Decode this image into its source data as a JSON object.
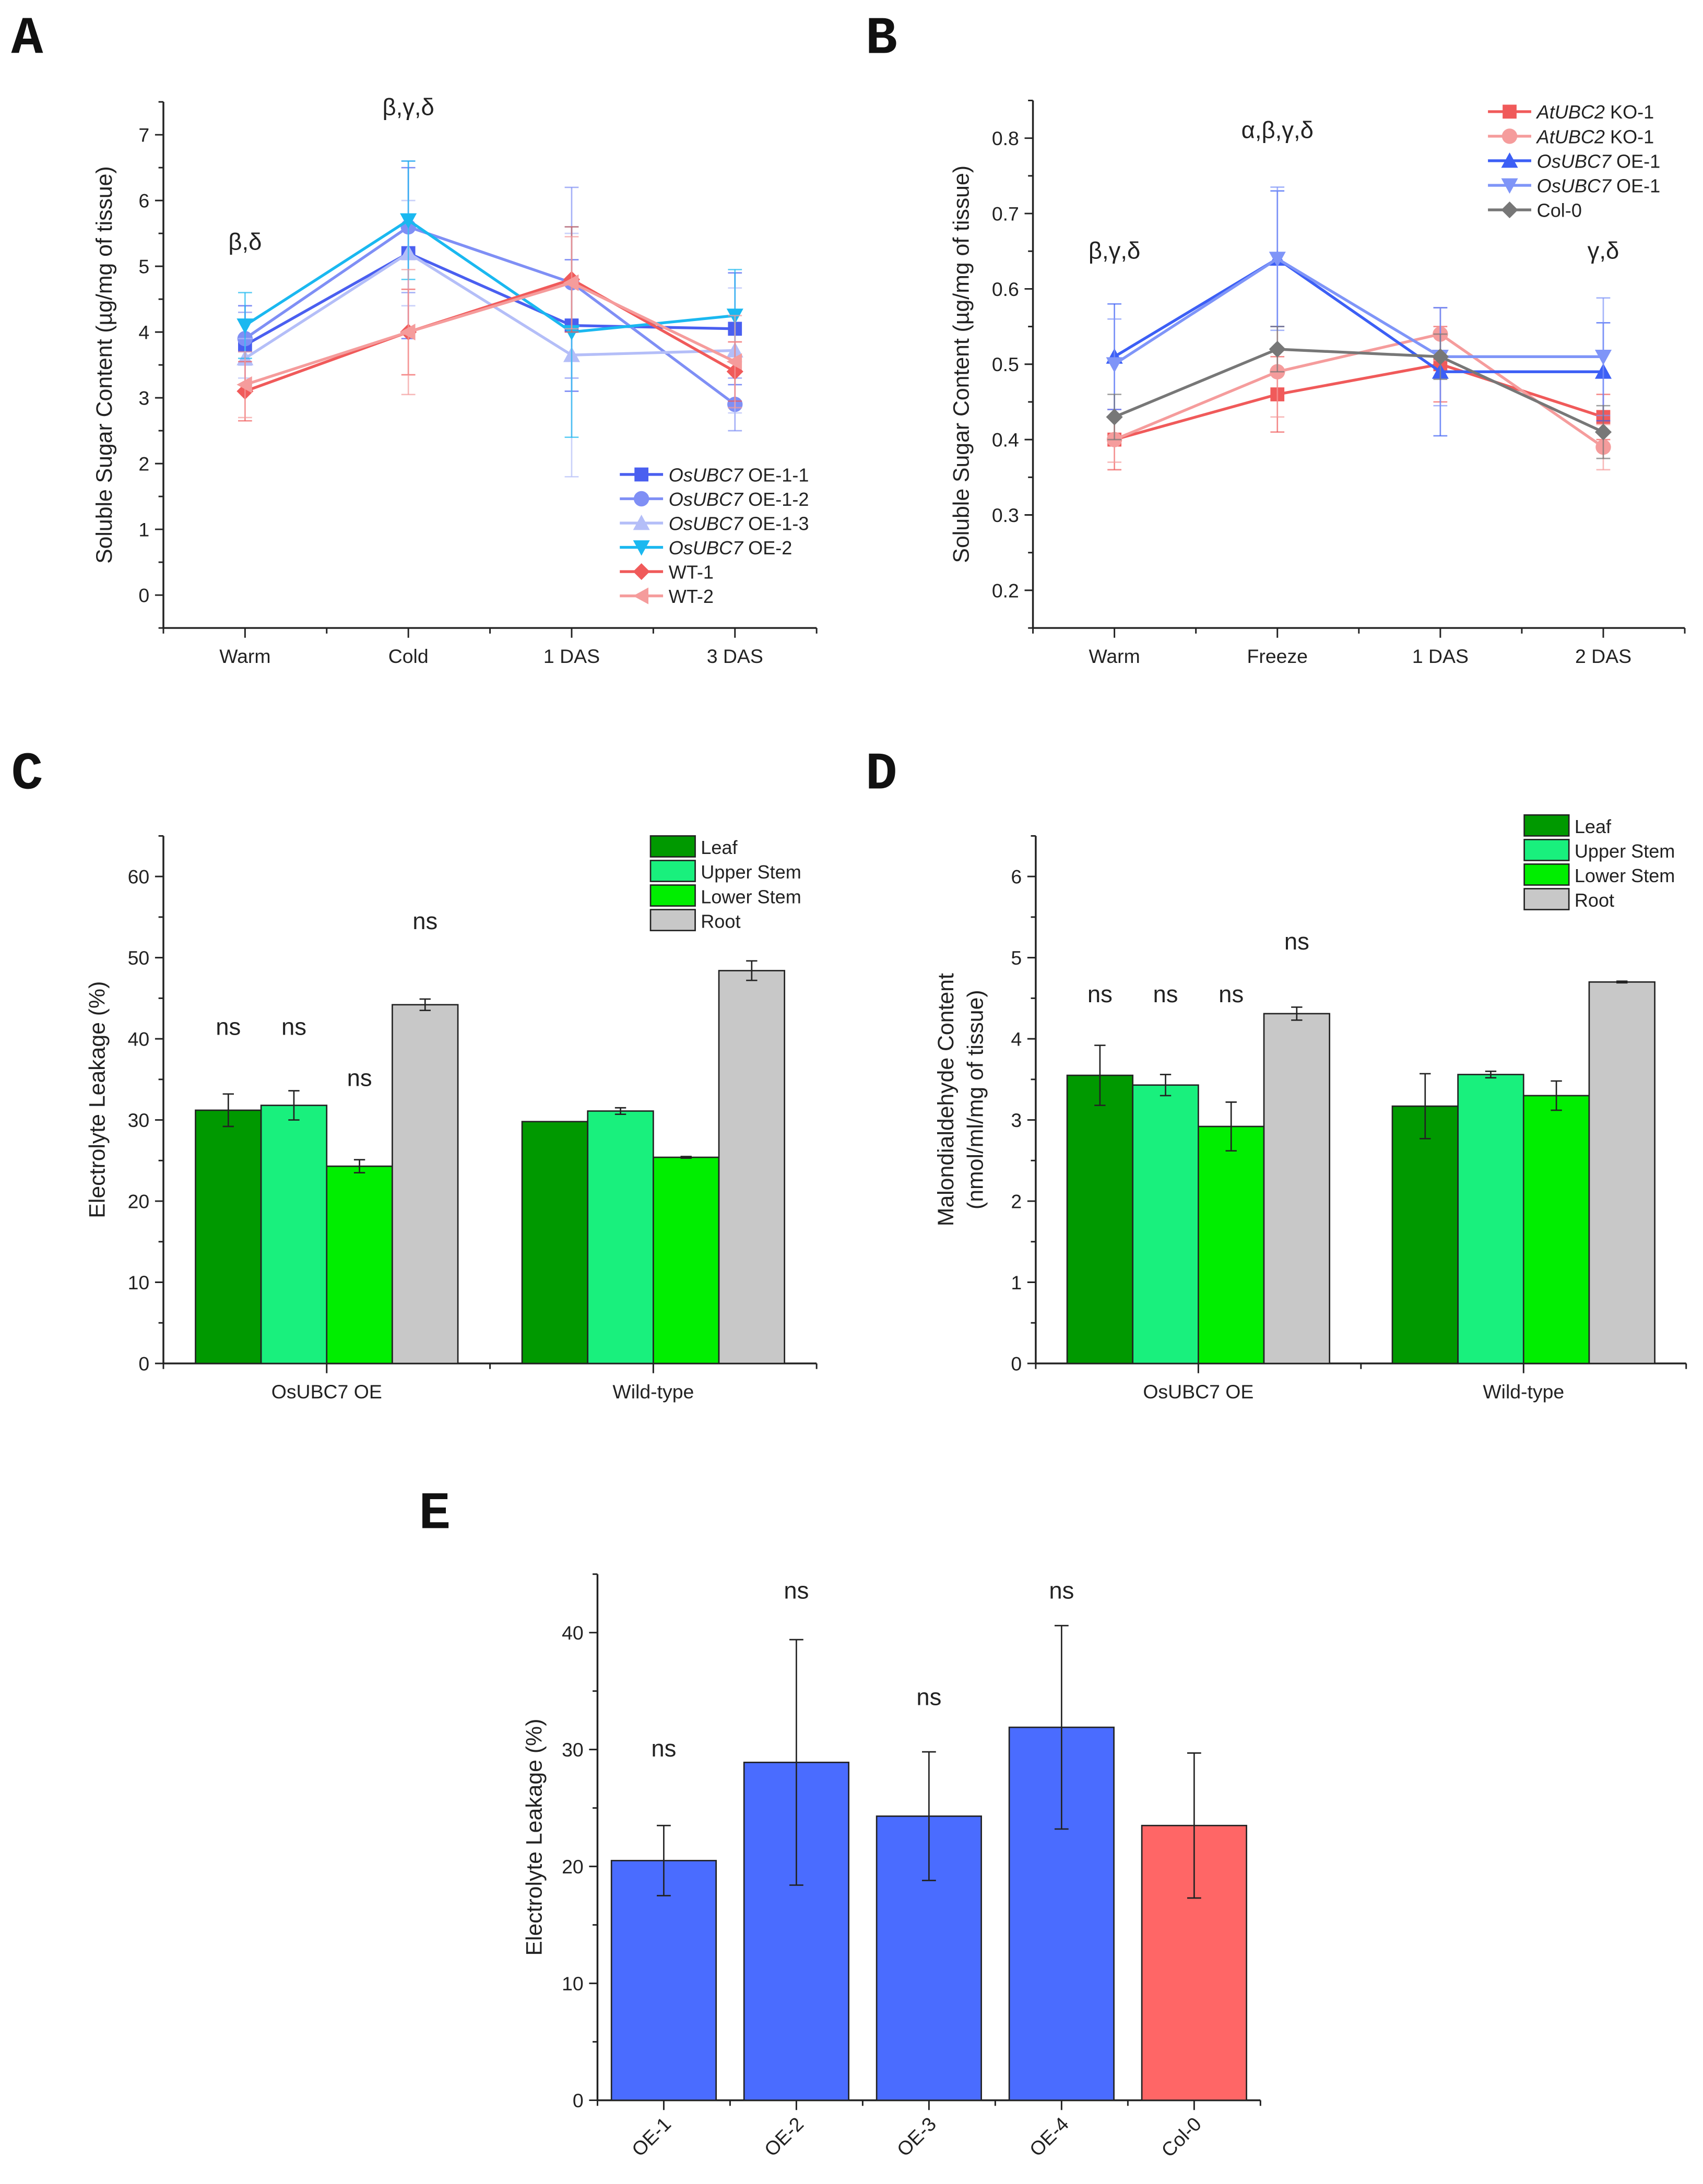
{
  "chart_data": [
    {
      "panel": "A",
      "type": "line",
      "ylabel": "Soluble Sugar Content (µg/mg of tissue)",
      "categories": [
        "Warm",
        "Cold",
        "1 DAS",
        "3 DAS"
      ],
      "ylim": [
        -0.5,
        7.5
      ],
      "yticks": [
        0,
        1,
        2,
        3,
        4,
        5,
        6,
        7
      ],
      "minor": 0.5,
      "legend": "bottom-right",
      "series": [
        {
          "gene": "OsUBC7",
          "line": " OE-1-1",
          "color": "#4a5ff0",
          "marker": "square",
          "values": [
            3.8,
            5.2,
            4.1,
            4.05
          ],
          "errors": [
            0.6,
            1.3,
            1.0,
            0.85
          ]
        },
        {
          "gene": "OsUBC7",
          "line": " OE-1-2",
          "color": "#7f8ff5",
          "marker": "circle",
          "values": [
            3.9,
            5.6,
            4.75,
            2.9
          ],
          "errors": [
            0.4,
            1.0,
            1.45,
            0.4
          ]
        },
        {
          "gene": "OsUBC7",
          "line": " OE-1-3",
          "color": "#b4bef8",
          "marker": "triangle-up",
          "values": [
            3.6,
            5.2,
            3.65,
            3.72
          ],
          "errors": [
            0.3,
            0.8,
            1.85,
            0.95
          ]
        },
        {
          "gene": "OsUBC7",
          "line": " OE-2",
          "color": "#1ab8f0",
          "marker": "triangle-down",
          "values": [
            4.1,
            5.7,
            4.0,
            4.25
          ],
          "errors": [
            0.5,
            0.9,
            1.6,
            0.7
          ]
        },
        {
          "gene": "",
          "line": "WT-1",
          "color": "#f05a5a",
          "marker": "diamond",
          "values": [
            3.1,
            4.0,
            4.8,
            3.4
          ],
          "errors": [
            0.45,
            0.65,
            0.8,
            0.45
          ]
        },
        {
          "gene": "",
          "line": "WT-2",
          "color": "#f59c9c",
          "marker": "triangle-left",
          "values": [
            3.2,
            4.0,
            4.75,
            3.55
          ],
          "errors": [
            0.5,
            0.95,
            0.7,
            0.7
          ]
        }
      ],
      "annotations": [
        {
          "text": "β,δ",
          "category": 0,
          "y": 5.25
        },
        {
          "text": "β,γ,δ",
          "category": 1,
          "y": 7.3
        }
      ]
    },
    {
      "panel": "B",
      "type": "line",
      "ylabel": "Soluble Sugar Content (µg/mg of tissue)",
      "categories": [
        "Warm",
        "Freeze",
        "1 DAS",
        "2 DAS"
      ],
      "ylim": [
        0.15,
        0.85
      ],
      "yticks": [
        0.2,
        0.3,
        0.4,
        0.5,
        0.6,
        0.7,
        0.8
      ],
      "minor": 0.05,
      "legend": "top-right",
      "series": [
        {
          "gene": "AtUBC2",
          "line": " KO-1",
          "color": "#f05a5a",
          "marker": "square",
          "values": [
            0.4,
            0.46,
            0.5,
            0.43
          ],
          "errors": [
            0.04,
            0.05,
            0.05,
            0.03
          ]
        },
        {
          "gene": "AtUBC2",
          "line": " KO-1",
          "color": "#f59c9c",
          "marker": "circle",
          "values": [
            0.4,
            0.49,
            0.54,
            0.39
          ],
          "errors": [
            0.03,
            0.06,
            0.035,
            0.03
          ]
        },
        {
          "gene": "OsUBC7",
          "line": " OE-1",
          "color": "#3c5ff5",
          "marker": "triangle-up",
          "values": [
            0.51,
            0.64,
            0.49,
            0.49
          ],
          "errors": [
            0.07,
            0.09,
            0.085,
            0.065
          ]
        },
        {
          "gene": "OsUBC7",
          "line": " OE-1",
          "color": "#7f95f8",
          "marker": "triangle-down",
          "values": [
            0.5,
            0.64,
            0.51,
            0.51
          ],
          "errors": [
            0.06,
            0.095,
            0.065,
            0.078
          ]
        },
        {
          "gene": "",
          "line": "Col-0",
          "color": "#777777",
          "marker": "diamond",
          "values": [
            0.43,
            0.52,
            0.51,
            0.41
          ],
          "errors": [
            0.03,
            0.03,
            0.03,
            0.035
          ]
        }
      ],
      "annotations": [
        {
          "text": "β,γ,δ",
          "category": 0,
          "y": 0.64
        },
        {
          "text": "α,β,γ,δ",
          "category": 1,
          "y": 0.8
        },
        {
          "text": "γ,δ",
          "category": 3,
          "y": 0.64
        }
      ]
    },
    {
      "panel": "C",
      "type": "bar",
      "ylabel": "Electrolyte Leakage (%)",
      "categories": [
        "OsUBC7 OE",
        "Wild-type"
      ],
      "ylim": [
        0,
        65
      ],
      "yticks": [
        0,
        10,
        20,
        30,
        40,
        50,
        60
      ],
      "minor": 5,
      "legend": "top-right",
      "series": [
        {
          "name": "Leaf",
          "color": "#009900",
          "values": [
            31.2,
            29.8
          ],
          "errors": [
            2.0,
            0
          ]
        },
        {
          "name": "Upper Stem",
          "color": "#19f07d",
          "values": [
            31.8,
            31.1
          ],
          "errors": [
            1.8,
            0.4
          ]
        },
        {
          "name": "Lower Stem",
          "color": "#00ee00",
          "values": [
            24.3,
            25.4
          ],
          "errors": [
            0.8,
            0.1
          ]
        },
        {
          "name": "Root",
          "color": "#c8c8c8",
          "values": [
            44.2,
            48.4
          ],
          "errors": [
            0.7,
            1.2
          ]
        }
      ],
      "annotations": [
        {
          "text": "ns",
          "category": 0,
          "series": 0,
          "y": 40.5
        },
        {
          "text": "ns",
          "category": 0,
          "series": 1,
          "y": 40.5
        },
        {
          "text": "ns",
          "category": 0,
          "series": 2,
          "y": 34.2
        },
        {
          "text": "ns",
          "category": 0,
          "series": 3,
          "y": 53.5
        }
      ]
    },
    {
      "panel": "D",
      "type": "bar",
      "ylabel": [
        "Malondialdehyde Content",
        "(nmol/ml/mg of tissue)"
      ],
      "categories": [
        "OsUBC7 OE",
        "Wild-type"
      ],
      "ylim": [
        0,
        6.5
      ],
      "yticks": [
        0,
        1,
        2,
        3,
        4,
        5,
        6
      ],
      "minor": 0.5,
      "legend": "top-right",
      "series": [
        {
          "name": "Leaf",
          "color": "#009900",
          "values": [
            3.55,
            3.17
          ],
          "errors": [
            0.37,
            0.4
          ]
        },
        {
          "name": "Upper Stem",
          "color": "#19f07d",
          "values": [
            3.43,
            3.56
          ],
          "errors": [
            0.13,
            0.04
          ]
        },
        {
          "name": "Lower Stem",
          "color": "#00ee00",
          "values": [
            2.92,
            3.3
          ],
          "errors": [
            0.3,
            0.18
          ]
        },
        {
          "name": "Root",
          "color": "#c8c8c8",
          "values": [
            4.31,
            4.7
          ],
          "errors": [
            0.08,
            0.01
          ]
        }
      ],
      "annotations": [
        {
          "text": "ns",
          "category": 0,
          "series": 0,
          "y": 4.45
        },
        {
          "text": "ns",
          "category": 0,
          "series": 1,
          "y": 4.45
        },
        {
          "text": "ns",
          "category": 0,
          "series": 2,
          "y": 4.45
        },
        {
          "text": "ns",
          "category": 0,
          "series": 3,
          "y": 5.1
        }
      ]
    },
    {
      "panel": "E",
      "type": "bar",
      "ylabel": "Electrolyte Leakage (%)",
      "categories": [
        "OE-1",
        "OE-2",
        "OE-3",
        "OE-4",
        "Col-0"
      ],
      "ylim": [
        0,
        45
      ],
      "yticks": [
        0,
        10,
        20,
        30,
        40
      ],
      "minor": 5,
      "colors": [
        "#4a6cff",
        "#4a6cff",
        "#4a6cff",
        "#4a6cff",
        "#ff6666"
      ],
      "values": [
        20.5,
        28.9,
        24.3,
        31.9,
        23.5
      ],
      "errors": [
        3.0,
        10.5,
        5.5,
        8.7,
        6.2
      ],
      "annotations": [
        {
          "text": "ns",
          "category": 0,
          "y": 29.4
        },
        {
          "text": "ns",
          "category": 1,
          "y": 42.9
        },
        {
          "text": "ns",
          "category": 2,
          "y": 33.8
        },
        {
          "text": "ns",
          "category": 3,
          "y": 42.9
        }
      ]
    }
  ]
}
